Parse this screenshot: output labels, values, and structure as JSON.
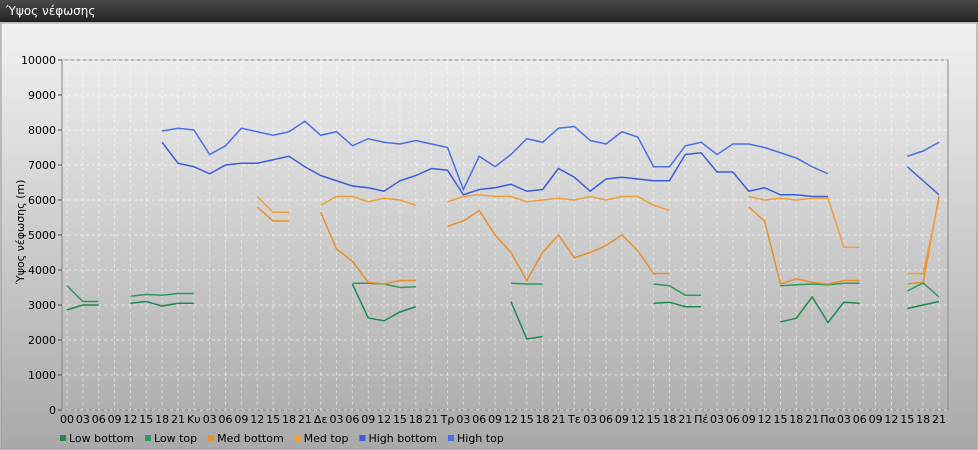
{
  "window_title": "Ύψος νέφωσης",
  "chart_data": {
    "type": "line",
    "y_label": "Ύψος νέφωσης (m)",
    "categories": [
      "00",
      "03",
      "06",
      "09",
      "12",
      "15",
      "18",
      "21",
      "Κυ",
      "03",
      "06",
      "09",
      "12",
      "15",
      "18",
      "21",
      "Δε",
      "03",
      "06",
      "09",
      "12",
      "15",
      "18",
      "21",
      "Τρ",
      "03",
      "06",
      "09",
      "12",
      "15",
      "18",
      "21",
      "Τε",
      "03",
      "06",
      "09",
      "12",
      "15",
      "18",
      "21",
      "Πέ",
      "03",
      "06",
      "09",
      "12",
      "15",
      "18",
      "21",
      "Πα",
      "03",
      "06",
      "09",
      "12",
      "15",
      "18",
      "21"
    ],
    "ylim": [
      0,
      10000
    ],
    "yticks": [
      0,
      1000,
      2000,
      3000,
      4000,
      5000,
      6000,
      7000,
      8000,
      9000,
      10000
    ],
    "grid": true,
    "legend": "bottom",
    "series": [
      {
        "name": "Low bottom",
        "color": "#1e8a4e",
        "values": [
          2860,
          3000,
          3000,
          null,
          3050,
          3100,
          2970,
          3050,
          3050,
          null,
          null,
          null,
          null,
          null,
          null,
          null,
          null,
          null,
          3600,
          2630,
          2550,
          2800,
          2950,
          null,
          null,
          null,
          null,
          null,
          3100,
          2030,
          2100,
          null,
          null,
          null,
          null,
          null,
          null,
          3050,
          3080,
          2950,
          2950,
          null,
          null,
          null,
          null,
          2520,
          2620,
          3230,
          2500,
          3080,
          3050,
          null,
          null,
          2900,
          3000,
          3100
        ]
      },
      {
        "name": "Low top",
        "color": "#2f9a5e",
        "values": [
          3550,
          3100,
          3100,
          null,
          3250,
          3300,
          3280,
          3330,
          3330,
          null,
          null,
          null,
          null,
          null,
          null,
          null,
          null,
          null,
          3620,
          3620,
          3600,
          3500,
          3520,
          null,
          null,
          null,
          null,
          null,
          3620,
          3600,
          3600,
          null,
          null,
          null,
          null,
          null,
          null,
          3600,
          3550,
          3280,
          3280,
          null,
          null,
          null,
          null,
          3550,
          3580,
          3600,
          3580,
          3620,
          3620,
          null,
          null,
          3400,
          3630,
          3230
        ]
      },
      {
        "name": "Med bottom",
        "color": "#e8902c",
        "values": [
          null,
          null,
          null,
          null,
          null,
          null,
          null,
          null,
          null,
          null,
          null,
          null,
          5800,
          5400,
          5400,
          null,
          5650,
          4600,
          4250,
          3650,
          3600,
          3700,
          3700,
          null,
          5250,
          5400,
          5700,
          5000,
          4500,
          3700,
          4500,
          5000,
          4350,
          4500,
          4700,
          5000,
          4550,
          3900,
          3900,
          null,
          null,
          null,
          null,
          5800,
          5400,
          3600,
          3750,
          3650,
          3600,
          3700,
          3700,
          null,
          null,
          3600,
          3650,
          6100
        ]
      },
      {
        "name": "Med top",
        "color": "#f0a03a",
        "values": [
          null,
          null,
          null,
          null,
          null,
          null,
          null,
          null,
          null,
          null,
          null,
          null,
          6100,
          5650,
          5650,
          null,
          5850,
          6100,
          6100,
          5950,
          6050,
          6000,
          5850,
          null,
          5950,
          6100,
          6150,
          6100,
          6100,
          5950,
          6000,
          6050,
          6000,
          6100,
          6000,
          6100,
          6100,
          5850,
          5700,
          null,
          null,
          null,
          null,
          6100,
          6000,
          6050,
          6000,
          6050,
          6050,
          4650,
          4650,
          null,
          null,
          3900,
          3900,
          6000
        ]
      },
      {
        "name": "High bottom",
        "color": "#3a5ed8",
        "values": [
          null,
          null,
          null,
          null,
          null,
          null,
          7650,
          7050,
          6950,
          6750,
          7000,
          7050,
          7050,
          7150,
          7250,
          6950,
          6700,
          6550,
          6400,
          6350,
          6250,
          6550,
          6700,
          6900,
          6850,
          6150,
          6300,
          6350,
          6450,
          6250,
          6300,
          6900,
          6650,
          6250,
          6600,
          6650,
          6600,
          6550,
          6550,
          7300,
          7350,
          6800,
          6800,
          6250,
          6350,
          6150,
          6150,
          6100,
          6100,
          null,
          null,
          null,
          null,
          6950,
          6550,
          6150
        ]
      },
      {
        "name": "High top",
        "color": "#4a70e4",
        "values": [
          null,
          null,
          null,
          null,
          null,
          null,
          7970,
          8050,
          8000,
          7300,
          7550,
          8050,
          7950,
          7850,
          7950,
          8250,
          7850,
          7950,
          7550,
          7750,
          7650,
          7600,
          7700,
          7600,
          7500,
          6300,
          7250,
          6950,
          7300,
          7750,
          7650,
          8050,
          8100,
          7700,
          7600,
          7950,
          7800,
          6950,
          6950,
          7550,
          7650,
          7300,
          7600,
          7600,
          7500,
          7350,
          7200,
          6950,
          6750,
          null,
          null,
          null,
          null,
          7250,
          7400,
          7650
        ]
      }
    ]
  }
}
